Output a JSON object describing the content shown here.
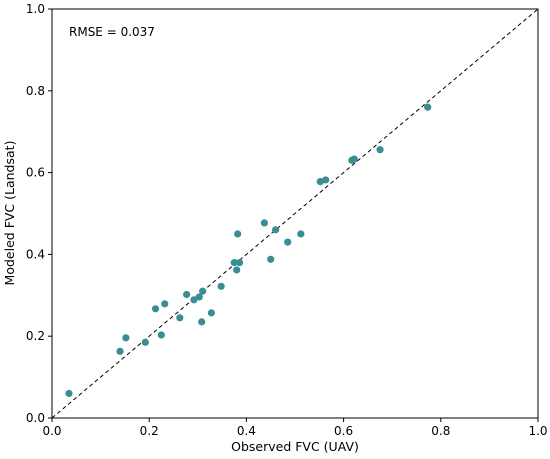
{
  "chart_data": {
    "type": "scatter",
    "title": "",
    "xlabel": "Observed FVC (UAV)",
    "ylabel": "Modeled FVC (Landsat)",
    "xlim": [
      0.0,
      1.0
    ],
    "ylim": [
      0.0,
      1.0
    ],
    "xticks": [
      "0.0",
      "0.2",
      "0.4",
      "0.6",
      "0.8",
      "1.0"
    ],
    "yticks": [
      "0.0",
      "0.2",
      "0.4",
      "0.6",
      "0.8",
      "1.0"
    ],
    "grid": false,
    "annotation": "RMSE = 0.037",
    "reference_line": {
      "style": "dashed",
      "from": [
        0,
        0
      ],
      "to": [
        1,
        1
      ]
    },
    "marker_color": "#3a8d93",
    "points": [
      {
        "x": 0.035,
        "y": 0.06
      },
      {
        "x": 0.14,
        "y": 0.163
      },
      {
        "x": 0.152,
        "y": 0.196
      },
      {
        "x": 0.192,
        "y": 0.185
      },
      {
        "x": 0.213,
        "y": 0.267
      },
      {
        "x": 0.225,
        "y": 0.203
      },
      {
        "x": 0.232,
        "y": 0.279
      },
      {
        "x": 0.263,
        "y": 0.245
      },
      {
        "x": 0.277,
        "y": 0.302
      },
      {
        "x": 0.292,
        "y": 0.289
      },
      {
        "x": 0.303,
        "y": 0.296
      },
      {
        "x": 0.308,
        "y": 0.235
      },
      {
        "x": 0.31,
        "y": 0.31
      },
      {
        "x": 0.328,
        "y": 0.257
      },
      {
        "x": 0.348,
        "y": 0.322
      },
      {
        "x": 0.375,
        "y": 0.38
      },
      {
        "x": 0.38,
        "y": 0.362
      },
      {
        "x": 0.382,
        "y": 0.45
      },
      {
        "x": 0.386,
        "y": 0.38
      },
      {
        "x": 0.437,
        "y": 0.477
      },
      {
        "x": 0.45,
        "y": 0.388
      },
      {
        "x": 0.46,
        "y": 0.46
      },
      {
        "x": 0.485,
        "y": 0.43
      },
      {
        "x": 0.512,
        "y": 0.45
      },
      {
        "x": 0.552,
        "y": 0.578
      },
      {
        "x": 0.563,
        "y": 0.582
      },
      {
        "x": 0.617,
        "y": 0.63
      },
      {
        "x": 0.622,
        "y": 0.633
      },
      {
        "x": 0.675,
        "y": 0.656
      },
      {
        "x": 0.773,
        "y": 0.76
      }
    ]
  }
}
